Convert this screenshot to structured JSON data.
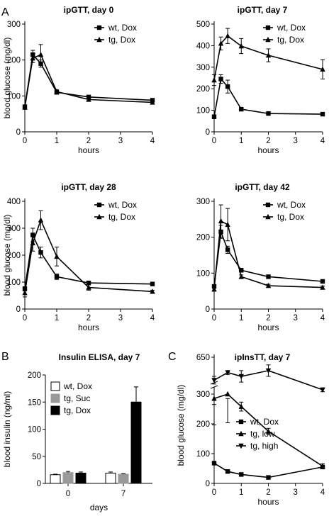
{
  "panel_letters": [
    "A",
    "B",
    "C"
  ],
  "chart_data": [
    {
      "type": "line",
      "title": "ipGTT, day 0",
      "xlabel": "hours",
      "ylabel": "blood glucose (mg/dl)",
      "xlim": [
        0,
        4
      ],
      "ylim": [
        0,
        300
      ],
      "xticks": [
        "0",
        "1",
        "2",
        "3",
        "4"
      ],
      "yticks": [
        "0",
        "100",
        "200",
        "300"
      ],
      "legend_position": "top-right",
      "series": [
        {
          "name": "wt, Dox",
          "marker": "square",
          "x": [
            0,
            0.25,
            0.5,
            1,
            2,
            4
          ],
          "y": [
            70,
            215,
            190,
            110,
            97,
            88
          ],
          "err": [
            5,
            12,
            10,
            5,
            4,
            4
          ]
        },
        {
          "name": "tg,  Dox",
          "marker": "triangle-up",
          "x": [
            0,
            0.25,
            0.5,
            1,
            2,
            4
          ],
          "y": [
            68,
            205,
            215,
            112,
            90,
            82
          ],
          "err": [
            5,
            12,
            28,
            5,
            4,
            4
          ]
        }
      ]
    },
    {
      "type": "line",
      "title": "ipGTT, day 7",
      "xlabel": "hours",
      "ylabel": "",
      "xlim": [
        0,
        4
      ],
      "ylim": [
        0,
        500
      ],
      "xticks": [
        "0",
        "1",
        "2",
        "3",
        "4"
      ],
      "yticks": [
        "0",
        "100",
        "200",
        "300",
        "400",
        "500"
      ],
      "legend_position": "top-right",
      "series": [
        {
          "name": "wt, Dox",
          "marker": "square",
          "x": [
            0,
            0.25,
            0.5,
            1,
            2,
            4
          ],
          "y": [
            70,
            245,
            210,
            105,
            85,
            82
          ],
          "err": [
            8,
            20,
            30,
            6,
            5,
            5
          ]
        },
        {
          "name": "tg,  Dox",
          "marker": "triangle-up",
          "x": [
            0,
            0.25,
            0.5,
            1,
            2,
            4
          ],
          "y": [
            240,
            410,
            445,
            398,
            355,
            290
          ],
          "err": [
            25,
            30,
            35,
            35,
            30,
            45
          ]
        }
      ]
    },
    {
      "type": "line",
      "title": "ipGTT, day 28",
      "xlabel": "hours",
      "ylabel": "blood glucose (mg/dl)",
      "xlim": [
        0,
        4
      ],
      "ylim": [
        0,
        400
      ],
      "xticks": [
        "0",
        "1",
        "2",
        "3",
        "4"
      ],
      "yticks": [
        "0",
        "100",
        "200",
        "300",
        "400"
      ],
      "legend_position": "top-right",
      "series": [
        {
          "name": "wt, Dox",
          "marker": "square",
          "x": [
            0,
            0.25,
            0.5,
            1,
            2,
            4
          ],
          "y": [
            75,
            275,
            210,
            120,
            97,
            93
          ],
          "err": [
            8,
            25,
            20,
            10,
            5,
            5
          ]
        },
        {
          "name": "tg,  Dox",
          "marker": "triangle-up",
          "x": [
            0,
            0.25,
            0.5,
            1,
            2,
            4
          ],
          "y": [
            60,
            245,
            330,
            195,
            80,
            65
          ],
          "err": [
            15,
            30,
            35,
            35,
            10,
            5
          ]
        }
      ]
    },
    {
      "type": "line",
      "title": "ipGTT, day 42",
      "xlabel": "hours",
      "ylabel": "",
      "xlim": [
        0,
        4
      ],
      "ylim": [
        0,
        300
      ],
      "xticks": [
        "0",
        "1",
        "2",
        "3",
        "4"
      ],
      "yticks": [
        "0",
        "100",
        "200",
        "300"
      ],
      "legend_position": "top-right",
      "series": [
        {
          "name": "wt, Dox",
          "marker": "square",
          "x": [
            0,
            0.25,
            0.5,
            1,
            2,
            4
          ],
          "y": [
            63,
            215,
            165,
            108,
            90,
            77
          ],
          "err": [
            5,
            18,
            10,
            5,
            4,
            4
          ]
        },
        {
          "name": "tg,  Dox",
          "marker": "triangle-up",
          "x": [
            0,
            0.25,
            0.5,
            1,
            2,
            4
          ],
          "y": [
            55,
            245,
            235,
            90,
            65,
            60
          ],
          "err": [
            5,
            45,
            45,
            5,
            4,
            4
          ]
        }
      ]
    },
    {
      "type": "bar",
      "title": "Insulin ELISA, day 7",
      "xlabel": "days",
      "ylabel": "blood insulin (ng/ml)",
      "ylim": [
        0,
        200
      ],
      "yticks": [
        "0",
        "50",
        "100",
        "150",
        "200"
      ],
      "categories": [
        "0",
        "7"
      ],
      "legend_position": "top-left",
      "series": [
        {
          "name": "wt, Dox",
          "color": "#ffffff",
          "values": [
            16,
            19
          ],
          "err": [
            1,
            2
          ]
        },
        {
          "name": "tg,  Suc",
          "color": "#999999",
          "values": [
            20,
            17
          ],
          "err": [
            2,
            1
          ]
        },
        {
          "name": "tg,  Dox",
          "color": "#000000",
          "values": [
            19,
            150
          ],
          "err": [
            2,
            28
          ]
        }
      ]
    },
    {
      "type": "line",
      "title": "ipInsTT, day 7",
      "xlabel": "hours",
      "ylabel": "blood glucose (mg/dl)",
      "xlim": [
        0,
        4
      ],
      "ylim": [
        0,
        650
      ],
      "axis_break": true,
      "xticks": [
        "0",
        "1",
        "2",
        "3",
        "4"
      ],
      "yticks": [
        "0",
        "100",
        "200",
        "300",
        "650"
      ],
      "legend_position": "right",
      "series": [
        {
          "name": "wt, Dox",
          "marker": "square",
          "x": [
            0,
            0.5,
            1,
            2,
            4
          ],
          "y": [
            68,
            40,
            30,
            20,
            55
          ],
          "err": [
            5,
            5,
            5,
            4,
            5
          ]
        },
        {
          "name": "tg,  low",
          "marker": "triangle-up",
          "x": [
            0,
            0.5,
            1,
            2,
            4
          ],
          "y": [
            285,
            300,
            258,
            175,
            58
          ],
          "err": [
            20,
            15,
            15,
            10,
            8
          ]
        },
        {
          "name": "tg,  high",
          "marker": "triangle-down",
          "x": [
            0,
            0.5,
            1,
            2,
            4
          ],
          "y": [
            590,
            610,
            600,
            615,
            565
          ],
          "err": [
            10,
            5,
            15,
            15,
            5
          ]
        }
      ]
    }
  ]
}
